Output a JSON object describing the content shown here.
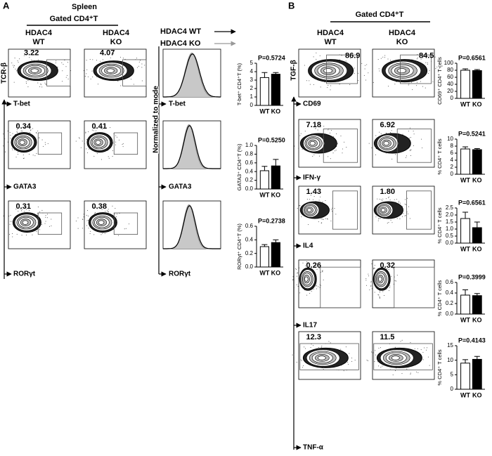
{
  "panel_a": {
    "label": "A",
    "tissue": "Spleen",
    "gate": "Gated CD4⁺T",
    "columns": [
      [
        "HDAC4",
        "WT"
      ],
      [
        "HDAC4",
        "KO"
      ]
    ],
    "y_axis": "TCR-β",
    "markers": [
      "T-bet",
      "GATA3",
      "RORγt"
    ],
    "gate_values": [
      [
        "3.22",
        "4.07"
      ],
      [
        "0.34",
        "0.41"
      ],
      [
        "0.31",
        "0.38"
      ]
    ],
    "histogram": {
      "y_axis": "Normalized to mode",
      "legend": [
        {
          "name": "HDAC4 WT",
          "color": "#000000"
        },
        {
          "name": "HDAC4 KO",
          "color": "#999999"
        }
      ],
      "x_labels": [
        "T-bet",
        "GATA3",
        "RORγt"
      ]
    }
  },
  "panel_b": {
    "label": "B",
    "gate": "Gated CD4⁺T",
    "columns": [
      [
        "HDAC4",
        "WT"
      ],
      [
        "HDAC4",
        "KO"
      ]
    ],
    "y_axis": "TGF-β",
    "markers": [
      "CD69",
      "IFN-γ",
      "IL4",
      "IL17",
      "TNF-α"
    ],
    "gate_values": [
      [
        "86.9",
        "84.5"
      ],
      [
        "7.18",
        "6.92"
      ],
      [
        "1.43",
        "1.80"
      ],
      [
        "0.26",
        "0.32"
      ],
      [
        "12.3",
        "11.5"
      ]
    ]
  },
  "chart_data": [
    {
      "type": "bar",
      "annotation": "P=0.5724",
      "ylabel": "T-bet⁺ CD4⁺T (%)",
      "categories": [
        "WT",
        "KO"
      ],
      "colors": [
        "#ffffff",
        "#000000"
      ],
      "values": [
        3.3,
        3.7
      ],
      "errors": [
        0.6,
        0.2
      ],
      "ylim": [
        0,
        5
      ],
      "yticks": [
        0,
        1,
        2,
        3,
        4,
        5
      ]
    },
    {
      "type": "bar",
      "annotation": "P=0.5250",
      "ylabel": "GATA3⁺ CD4⁺T (%)",
      "categories": [
        "WT",
        "KO"
      ],
      "colors": [
        "#ffffff",
        "#000000"
      ],
      "values": [
        0.42,
        0.53
      ],
      "errors": [
        0.1,
        0.15
      ],
      "ylim": [
        0,
        1
      ],
      "yticks": [
        {
          "value": 0,
          "label": "0.0"
        },
        0.2,
        0.4,
        0.6,
        0.8,
        {
          "value": 1,
          "label": "1.0"
        }
      ]
    },
    {
      "type": "bar",
      "annotation": "P=0.2738",
      "ylabel": "RORγt⁺ CD4⁺T (%)",
      "categories": [
        "WT",
        "KO"
      ],
      "colors": [
        "#ffffff",
        "#000000"
      ],
      "values": [
        0.3,
        0.36
      ],
      "errors": [
        0.03,
        0.04
      ],
      "ylim": [
        0,
        0.6
      ],
      "yticks": [
        {
          "value": 0,
          "label": "0.0"
        },
        0.2,
        0.4,
        0.6
      ]
    },
    {
      "type": "bar",
      "annotation": "P=0.6561",
      "ylabel": "CD69⁺ CD4⁺ T cells",
      "categories": [
        "WT",
        "KO"
      ],
      "colors": [
        "#ffffff",
        "#000000"
      ],
      "values": [
        80,
        79
      ],
      "errors": [
        4,
        3
      ],
      "ylim": [
        0,
        100
      ],
      "yticks": [
        0,
        20,
        40,
        60,
        80,
        100
      ]
    },
    {
      "type": "bar",
      "annotation": "P=0.5241",
      "ylabel": "% CD4⁺ T cells",
      "categories": [
        "WT",
        "KO"
      ],
      "colors": [
        "#ffffff",
        "#000000"
      ],
      "values": [
        7.2,
        7.0
      ],
      "errors": [
        0.6,
        0.3
      ],
      "ylim": [
        0,
        10
      ],
      "yticks": [
        0,
        2,
        4,
        6,
        8,
        10
      ]
    },
    {
      "type": "bar",
      "annotation": "P=0.6561",
      "ylabel": "% CD4⁺ T cells",
      "categories": [
        "WT",
        "KO"
      ],
      "colors": [
        "#ffffff",
        "#000000"
      ],
      "values": [
        1.75,
        1.1
      ],
      "errors": [
        0.45,
        0.4
      ],
      "ylim": [
        0,
        2.5
      ],
      "yticks": [
        {
          "value": 0,
          "label": "0.0"
        },
        0.5,
        {
          "value": 1,
          "label": "1.0"
        },
        1.5,
        {
          "value": 2,
          "label": "2.0"
        },
        2.5
      ]
    },
    {
      "type": "bar",
      "annotation": "P=0.3999",
      "ylabel": "% CD4⁺ T cells",
      "categories": [
        "WT",
        "KO"
      ],
      "colors": [
        "#ffffff",
        "#000000"
      ],
      "values": [
        0.36,
        0.35
      ],
      "errors": [
        0.1,
        0.04
      ],
      "ylim": [
        0,
        0.6
      ],
      "yticks": [
        {
          "value": 0,
          "label": "0.0"
        },
        0.2,
        0.4,
        0.6
      ]
    },
    {
      "type": "bar",
      "annotation": "P=0.4143",
      "ylabel": "% CD4⁺ T cells",
      "categories": [
        "WT",
        "KO"
      ],
      "colors": [
        "#ffffff",
        "#000000"
      ],
      "values": [
        9,
        10.3
      ],
      "errors": [
        1.2,
        1.0
      ],
      "ylim": [
        0,
        15
      ],
      "yticks": [
        0,
        5,
        10,
        15
      ]
    }
  ]
}
